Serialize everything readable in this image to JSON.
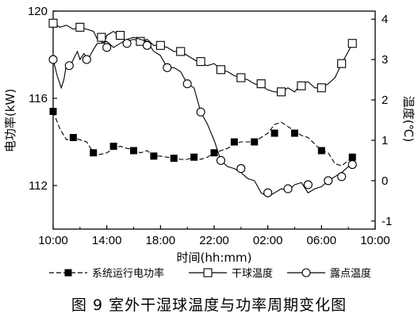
{
  "caption": "图 9  室外干湿球温度与功率周期变化图",
  "chart_data": {
    "type": "line",
    "xlabel": "时间(hh:mm)",
    "ylabel_left": "电功率(kW)",
    "ylabel_right": "温度(℃)",
    "x_ticks": [
      "10:00",
      "14:00",
      "18:00",
      "22:00",
      "02:00",
      "06:00",
      "10:00"
    ],
    "x_range_hours": [
      0,
      24
    ],
    "y_left": {
      "range": [
        110,
        120
      ],
      "ticks": [
        "112",
        "116",
        "120"
      ]
    },
    "y_right": {
      "range": [
        -1.2,
        4.2
      ],
      "ticks": [
        "-1",
        "0",
        "1",
        "2",
        "3",
        "4"
      ]
    },
    "series": [
      {
        "name": "系统运行电功率",
        "axis": "left",
        "marker": "filled-square",
        "line": "dashed",
        "points": [
          [
            0,
            115.4
          ],
          [
            0.5,
            114.6
          ],
          [
            1,
            114.1
          ],
          [
            1.5,
            114.2
          ],
          [
            2,
            114.1
          ],
          [
            2.5,
            114.0
          ],
          [
            3,
            113.5
          ],
          [
            3.3,
            113.4
          ],
          [
            4,
            113.5
          ],
          [
            4.5,
            113.7
          ],
          [
            5,
            113.8
          ],
          [
            5.5,
            113.7
          ],
          [
            6,
            113.65
          ],
          [
            6.5,
            113.5
          ],
          [
            7,
            113.6
          ],
          [
            7.5,
            113.35
          ],
          [
            8,
            113.35
          ],
          [
            8.5,
            113.3
          ],
          [
            9,
            113.25
          ],
          [
            9.5,
            113.2
          ],
          [
            10,
            113.2
          ],
          [
            10.5,
            113.3
          ],
          [
            11,
            113.2
          ],
          [
            11.5,
            113.3
          ],
          [
            12,
            113.5
          ],
          [
            12.5,
            113.6
          ],
          [
            13,
            113.7
          ],
          [
            13.5,
            113.9
          ],
          [
            14,
            114.0
          ],
          [
            14.5,
            114.0
          ],
          [
            15,
            114.0
          ],
          [
            15.5,
            114.2
          ],
          [
            16,
            114.4
          ],
          [
            16.5,
            114.8
          ],
          [
            17,
            114.9
          ],
          [
            17.5,
            114.7
          ],
          [
            18,
            114.5
          ],
          [
            18.5,
            114.3
          ],
          [
            19,
            114.2
          ],
          [
            19.5,
            113.9
          ],
          [
            20,
            113.6
          ],
          [
            20.5,
            113.5
          ],
          [
            21,
            113.0
          ],
          [
            21.5,
            112.9
          ],
          [
            22.3,
            113.3
          ]
        ],
        "marked_points": [
          [
            0,
            115.4
          ],
          [
            1.5,
            114.2
          ],
          [
            3,
            113.5
          ],
          [
            4.5,
            113.8
          ],
          [
            6,
            113.6
          ],
          [
            7.5,
            113.35
          ],
          [
            9,
            113.25
          ],
          [
            10.5,
            113.3
          ],
          [
            12,
            113.5
          ],
          [
            13.5,
            114.0
          ],
          [
            15,
            114.0
          ],
          [
            16.5,
            114.4
          ],
          [
            18,
            114.4
          ],
          [
            20,
            113.6
          ],
          [
            22.3,
            113.3
          ]
        ]
      },
      {
        "name": "干球温度",
        "axis": "right",
        "marker": "open-square",
        "line": "solid",
        "points": [
          [
            0,
            3.9
          ],
          [
            0.5,
            3.8
          ],
          [
            1,
            3.85
          ],
          [
            1.5,
            3.75
          ],
          [
            2,
            3.8
          ],
          [
            2.5,
            3.75
          ],
          [
            3,
            3.7
          ],
          [
            3.3,
            3.5
          ],
          [
            3.8,
            3.4
          ],
          [
            4,
            3.6
          ],
          [
            4.5,
            3.7
          ],
          [
            5,
            3.55
          ],
          [
            5.5,
            3.45
          ],
          [
            6,
            3.5
          ],
          [
            6.5,
            3.45
          ],
          [
            7,
            3.5
          ],
          [
            7.5,
            3.35
          ],
          [
            8,
            3.35
          ],
          [
            8.5,
            3.3
          ],
          [
            9,
            3.2
          ],
          [
            9.5,
            3.2
          ],
          [
            10,
            3.1
          ],
          [
            10.5,
            3.0
          ],
          [
            11,
            2.9
          ],
          [
            11.5,
            2.85
          ],
          [
            12,
            2.9
          ],
          [
            12.5,
            2.75
          ],
          [
            13,
            2.7
          ],
          [
            13.5,
            2.6
          ],
          [
            14,
            2.55
          ],
          [
            14.5,
            2.5
          ],
          [
            15,
            2.4
          ],
          [
            15.5,
            2.35
          ],
          [
            16,
            2.25
          ],
          [
            16.5,
            2.2
          ],
          [
            17,
            2.2
          ],
          [
            17.5,
            2.3
          ],
          [
            18,
            2.2
          ],
          [
            18.5,
            2.4
          ],
          [
            19,
            2.45
          ],
          [
            19.5,
            2.3
          ],
          [
            20,
            2.3
          ],
          [
            20.5,
            2.4
          ],
          [
            21,
            2.55
          ],
          [
            21.5,
            2.9
          ],
          [
            22,
            3.2
          ],
          [
            22.3,
            3.4
          ]
        ],
        "marked_points": [
          [
            0,
            3.9
          ],
          [
            2,
            3.8
          ],
          [
            3.6,
            3.55
          ],
          [
            5,
            3.6
          ],
          [
            6.5,
            3.45
          ],
          [
            8,
            3.35
          ],
          [
            9.5,
            3.2
          ],
          [
            11,
            2.95
          ],
          [
            12.5,
            2.75
          ],
          [
            14,
            2.55
          ],
          [
            15.5,
            2.4
          ],
          [
            17,
            2.2
          ],
          [
            18.5,
            2.35
          ],
          [
            20,
            2.3
          ],
          [
            21.5,
            2.9
          ],
          [
            22.3,
            3.4
          ]
        ]
      },
      {
        "name": "露点温度",
        "axis": "right",
        "marker": "open-circle",
        "line": "solid",
        "points": [
          [
            0,
            3.0
          ],
          [
            0.3,
            2.6
          ],
          [
            0.6,
            2.3
          ],
          [
            0.8,
            2.5
          ],
          [
            1,
            2.9
          ],
          [
            1.3,
            2.85
          ],
          [
            1.5,
            3.0
          ],
          [
            1.8,
            3.2
          ],
          [
            2,
            3.0
          ],
          [
            2.3,
            3.15
          ],
          [
            2.6,
            3.0
          ],
          [
            3,
            3.25
          ],
          [
            3.3,
            3.4
          ],
          [
            3.6,
            3.4
          ],
          [
            4,
            3.45
          ],
          [
            4.5,
            3.3
          ],
          [
            5,
            3.4
          ],
          [
            5.5,
            3.5
          ],
          [
            6,
            3.55
          ],
          [
            6.5,
            3.5
          ],
          [
            7,
            3.45
          ],
          [
            7.5,
            3.2
          ],
          [
            8,
            3.1
          ],
          [
            8.5,
            2.8
          ],
          [
            9,
            2.8
          ],
          [
            9.5,
            2.7
          ],
          [
            10,
            2.4
          ],
          [
            10.5,
            2.3
          ],
          [
            11,
            1.7
          ],
          [
            11.5,
            1.4
          ],
          [
            12,
            1.0
          ],
          [
            12.5,
            0.5
          ],
          [
            13,
            0.35
          ],
          [
            13.5,
            0.3
          ],
          [
            14,
            0.2
          ],
          [
            14.5,
            0.05
          ],
          [
            15,
            0.0
          ],
          [
            15.5,
            -0.3
          ],
          [
            16,
            -0.4
          ],
          [
            16.5,
            -0.3
          ],
          [
            17,
            -0.2
          ],
          [
            17.5,
            -0.25
          ],
          [
            18,
            -0.1
          ],
          [
            18.5,
            -0.05
          ],
          [
            19,
            -0.3
          ],
          [
            19.5,
            -0.2
          ],
          [
            20,
            -0.15
          ],
          [
            20.5,
            0.0
          ],
          [
            21,
            0.1
          ],
          [
            21.5,
            0.2
          ],
          [
            22,
            0.35
          ],
          [
            22.3,
            0.4
          ]
        ],
        "marked_points": [
          [
            0,
            3.0
          ],
          [
            1.2,
            2.85
          ],
          [
            2.5,
            3.0
          ],
          [
            4,
            3.3
          ],
          [
            5.5,
            3.4
          ],
          [
            7,
            3.35
          ],
          [
            8.5,
            2.8
          ],
          [
            10,
            2.4
          ],
          [
            11,
            1.7
          ],
          [
            12.5,
            0.5
          ],
          [
            14,
            0.3
          ],
          [
            16,
            -0.3
          ],
          [
            17.5,
            -0.2
          ],
          [
            19,
            -0.1
          ],
          [
            20.5,
            0.0
          ],
          [
            21.5,
            0.1
          ],
          [
            22.3,
            0.4
          ]
        ]
      }
    ]
  }
}
